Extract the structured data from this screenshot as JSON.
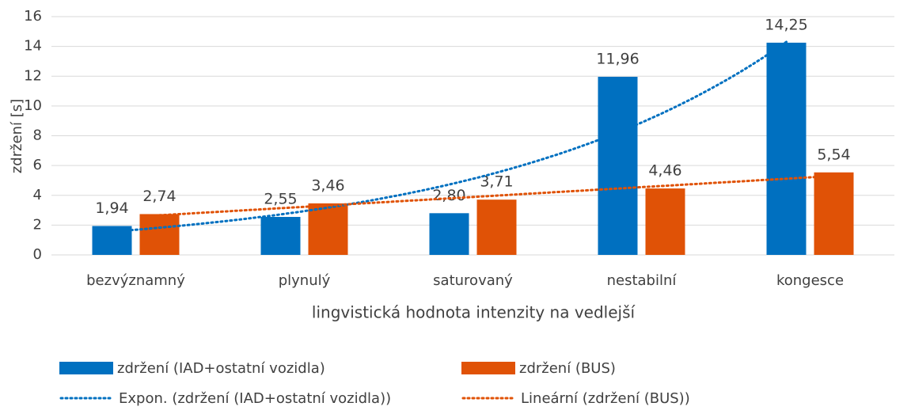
{
  "chart_data": {
    "type": "bar",
    "ylabel": "zdržení [s]",
    "xlabel": "lingvistická hodnota intenzity na vedlejší",
    "categories": [
      "bezvýznamný",
      "plynulý",
      "saturovaný",
      "nestabilní",
      "kongesce"
    ],
    "series": [
      {
        "name": "zdržení (IAD+ostatní vozidla)",
        "color": "#0070c0",
        "values": [
          1.94,
          2.55,
          2.8,
          11.96,
          14.25
        ],
        "value_labels": [
          "1,94",
          "2,55",
          "2,80",
          "11,96",
          "14,25"
        ]
      },
      {
        "name": "zdržení (BUS)",
        "color": "#e05206",
        "values": [
          2.74,
          3.46,
          3.71,
          4.46,
          5.54
        ],
        "value_labels": [
          "2,74",
          "3,46",
          "3,71",
          "4,46",
          "5,54"
        ]
      }
    ],
    "trendlines": [
      {
        "name": "Expon. (zdržení (IAD+ostatní vozidla))",
        "kind": "exponential",
        "series": 0,
        "color": "#0070c0"
      },
      {
        "name": "Lineární (zdržení (BUS))",
        "kind": "linear",
        "series": 1,
        "color": "#e05206"
      }
    ],
    "ylim": [
      0,
      16
    ],
    "yticks": [
      0,
      2,
      4,
      6,
      8,
      10,
      12,
      14,
      16
    ],
    "grid": true
  }
}
